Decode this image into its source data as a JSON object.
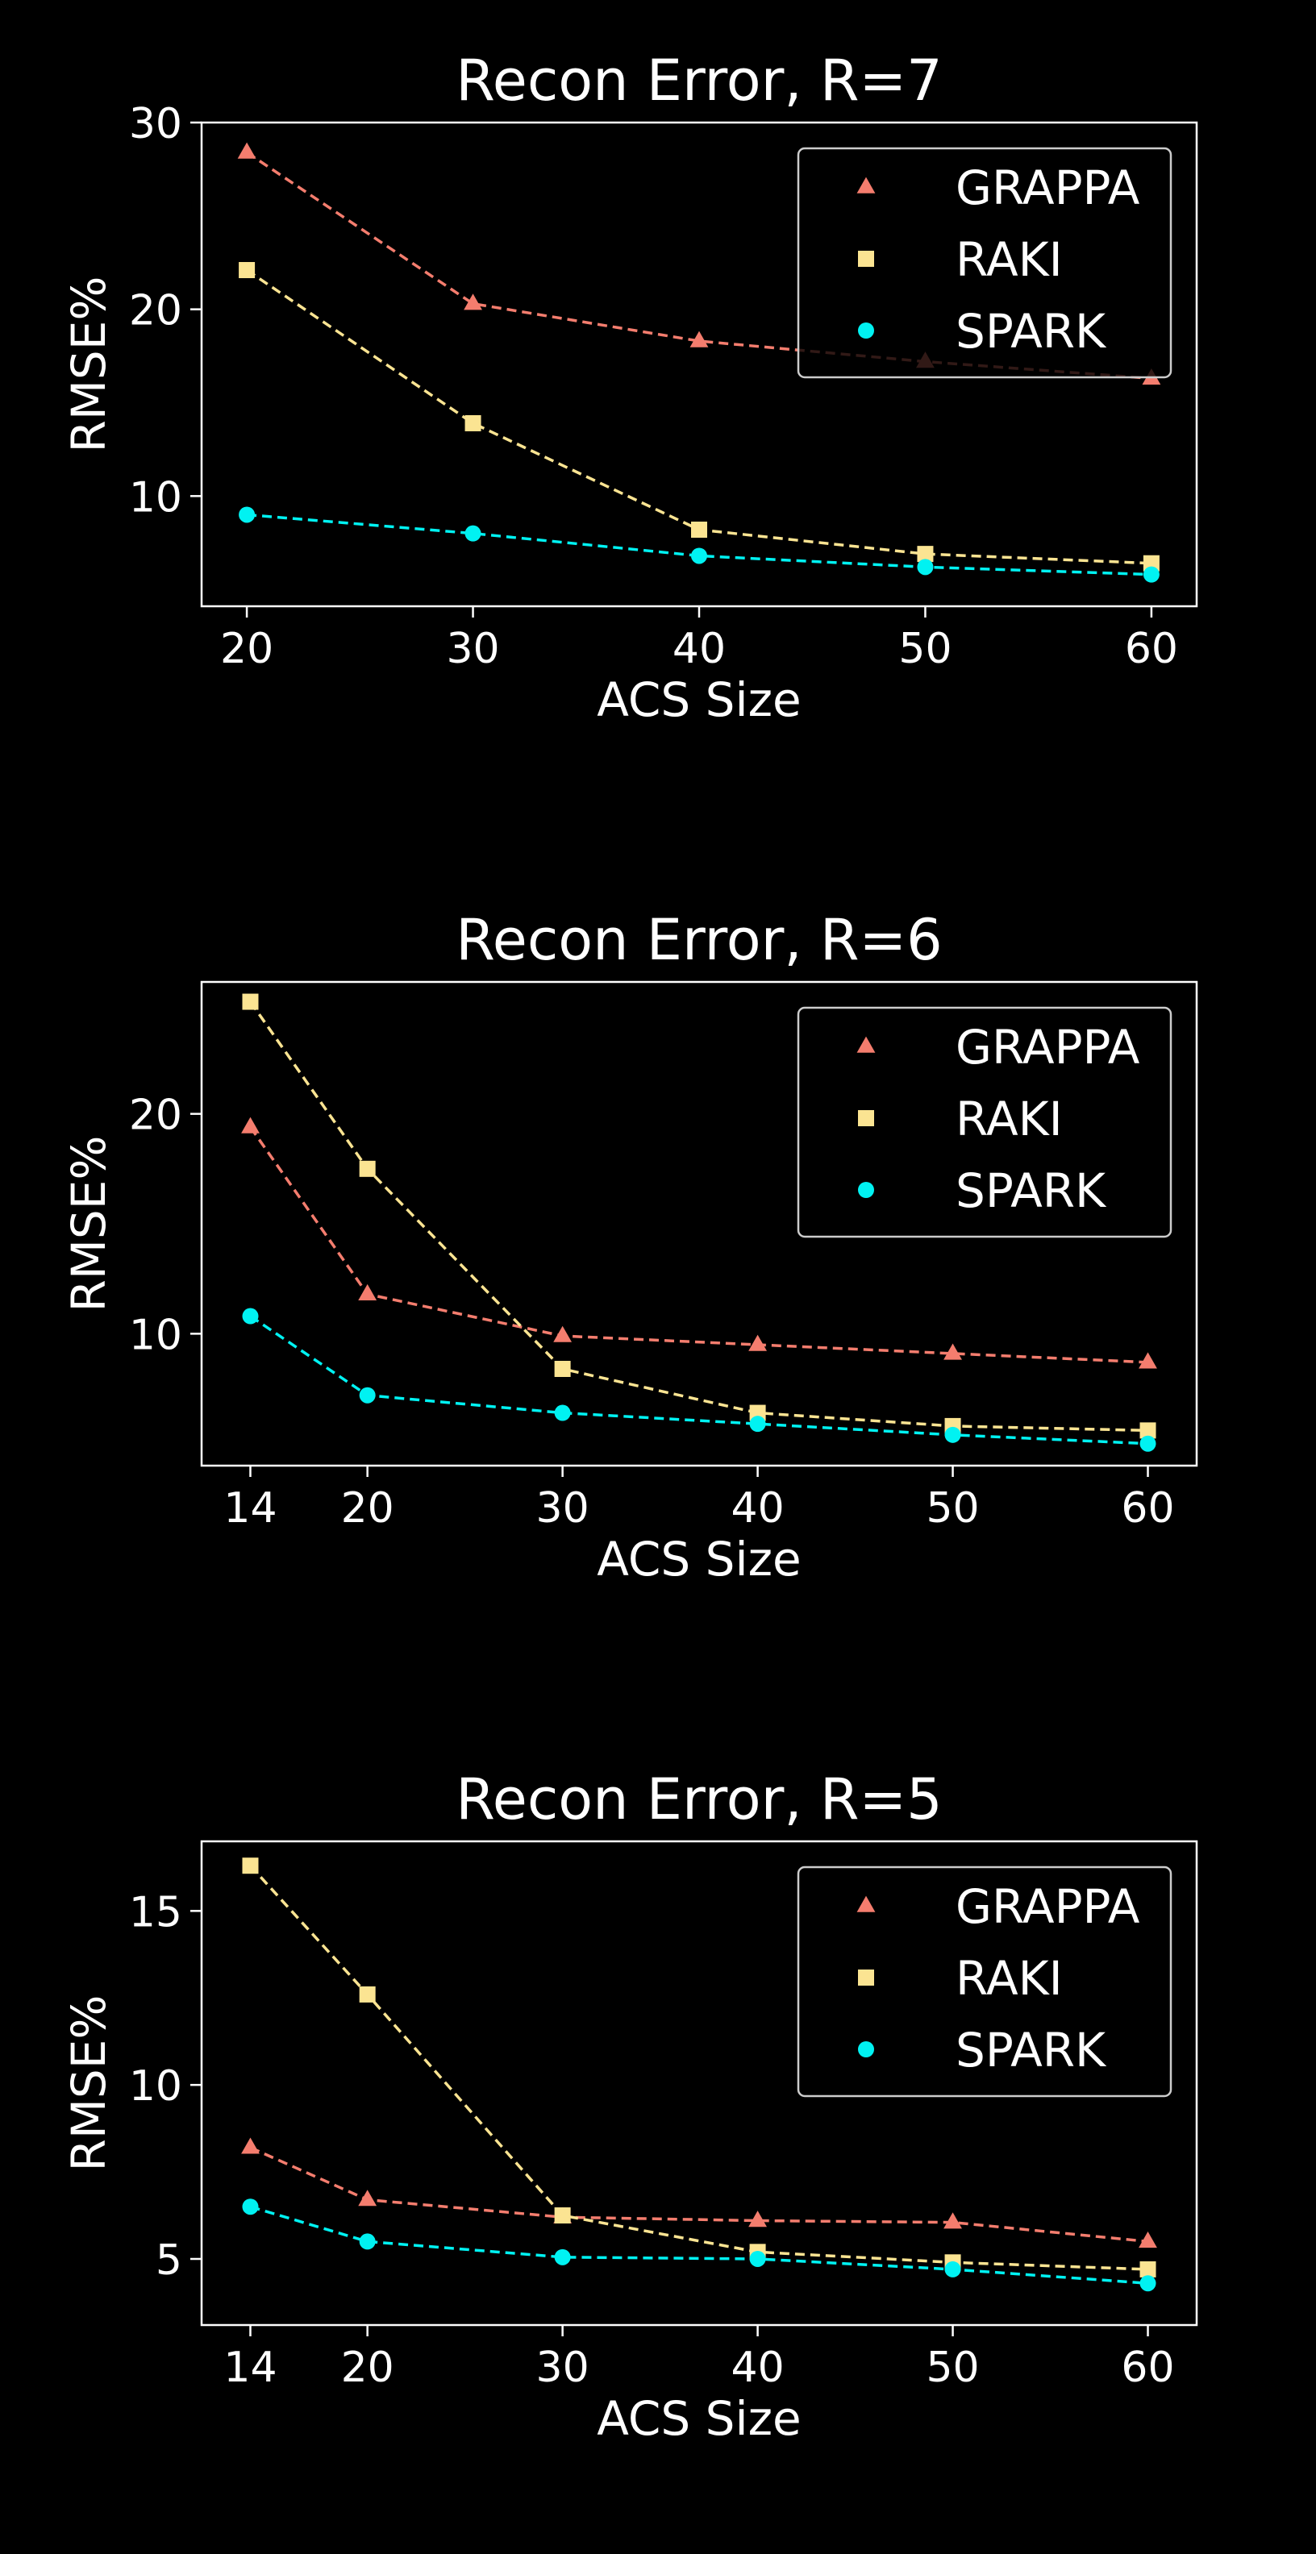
{
  "colors": {
    "background": "#000000",
    "text": "#ffffff",
    "GRAPPA": "#f47d6e",
    "RAKI": "#fbe492",
    "SPARK": "#00f2f2"
  },
  "chart_data": [
    {
      "type": "line",
      "title": "Recon Error, R=7",
      "xlabel": "ACS Size",
      "ylabel": "RMSE%",
      "x": [
        20,
        30,
        40,
        50,
        60
      ],
      "xticks": [
        "20",
        "30",
        "40",
        "50",
        "60"
      ],
      "xlim": [
        18,
        62
      ],
      "yticks": [
        10,
        20,
        30
      ],
      "ylim": [
        4.1,
        30
      ],
      "grid": false,
      "legend": "top-right",
      "series": [
        {
          "name": "GRAPPA",
          "marker": "triangle",
          "values": [
            28.4,
            20.3,
            18.3,
            17.2,
            16.3
          ]
        },
        {
          "name": "RAKI",
          "marker": "square",
          "values": [
            22.1,
            13.9,
            8.2,
            6.9,
            6.4
          ]
        },
        {
          "name": "SPARK",
          "marker": "circle",
          "values": [
            9.0,
            8.0,
            6.8,
            6.2,
            5.8
          ]
        }
      ]
    },
    {
      "type": "line",
      "title": "Recon Error, R=6",
      "xlabel": "ACS Size",
      "ylabel": "RMSE%",
      "x": [
        14,
        20,
        30,
        40,
        50,
        60
      ],
      "xticks": [
        "14",
        "20",
        "30",
        "40",
        "50",
        "60"
      ],
      "xlim": [
        11.5,
        62.5
      ],
      "yticks": [
        10,
        20
      ],
      "ylim": [
        4.0,
        26.0
      ],
      "grid": false,
      "legend": "top-right",
      "series": [
        {
          "name": "GRAPPA",
          "marker": "triangle",
          "values": [
            19.4,
            11.8,
            9.9,
            9.5,
            9.1,
            8.7
          ]
        },
        {
          "name": "RAKI",
          "marker": "square",
          "values": [
            25.1,
            17.5,
            8.4,
            6.4,
            5.8,
            5.6
          ]
        },
        {
          "name": "SPARK",
          "marker": "circle",
          "values": [
            10.8,
            7.2,
            6.4,
            5.9,
            5.4,
            5.0
          ]
        }
      ]
    },
    {
      "type": "line",
      "title": "Recon Error, R=5",
      "xlabel": "ACS Size",
      "ylabel": "RMSE%",
      "x": [
        14,
        20,
        30,
        40,
        50,
        60
      ],
      "xticks": [
        "14",
        "20",
        "30",
        "40",
        "50",
        "60"
      ],
      "xlim": [
        11.5,
        62.5
      ],
      "yticks": [
        5,
        10,
        15
      ],
      "ylim": [
        3.1,
        17.0
      ],
      "grid": false,
      "legend": "top-right",
      "series": [
        {
          "name": "GRAPPA",
          "marker": "triangle",
          "values": [
            8.2,
            6.7,
            6.2,
            6.1,
            6.05,
            5.5
          ]
        },
        {
          "name": "RAKI",
          "marker": "square",
          "values": [
            16.3,
            12.6,
            6.25,
            5.2,
            4.9,
            4.7
          ]
        },
        {
          "name": "SPARK",
          "marker": "circle",
          "values": [
            6.5,
            5.5,
            5.05,
            5.0,
            4.7,
            4.3
          ]
        }
      ]
    }
  ]
}
